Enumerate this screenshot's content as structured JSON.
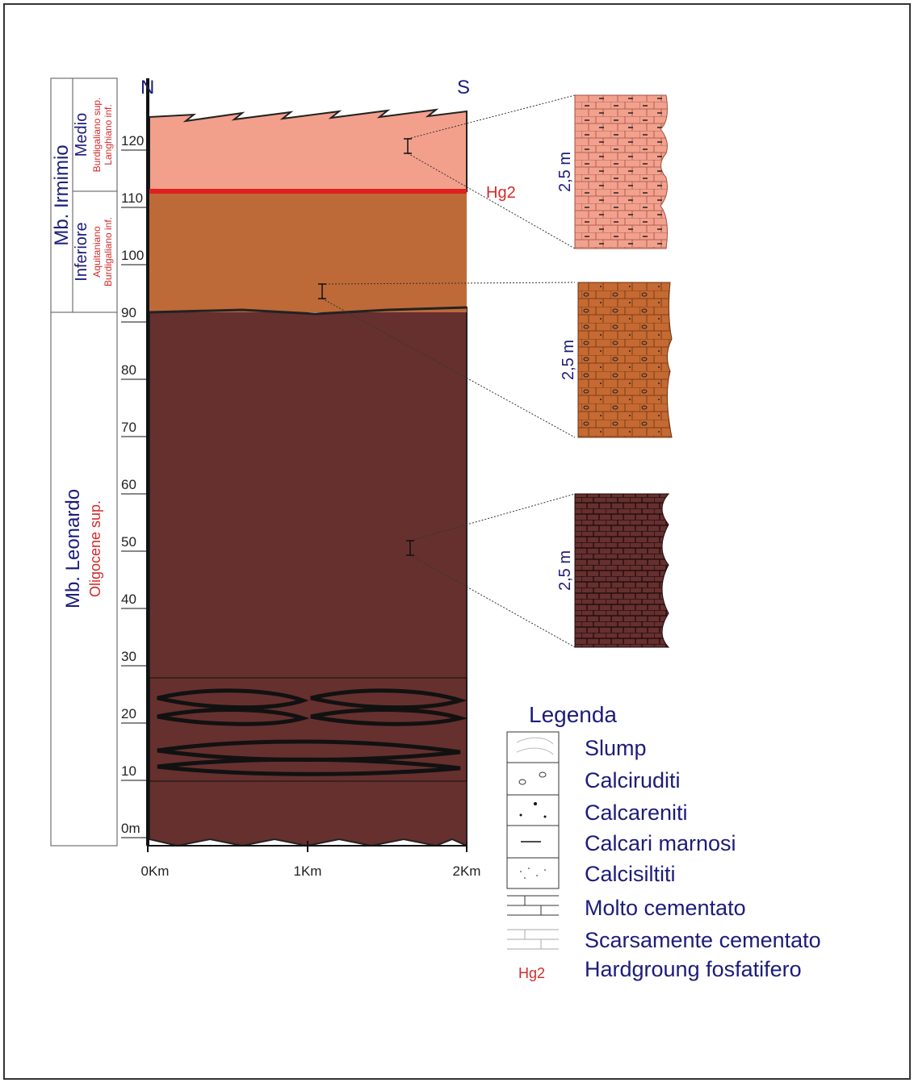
{
  "header": {
    "north": "N",
    "south": "S"
  },
  "column": {
    "upper_member": "Mb. Irmimio",
    "upper_part": "Medio",
    "upper_age_1": "Burdigaliano sup.",
    "upper_age_2": "Langhiano inf.",
    "lower_part": "Inferiore",
    "lower_age_1": "Aquitaniano",
    "lower_age_2": "Burdigaliano inf.",
    "lower_member": "Mb. Leonardo",
    "lower_age": "Oligocene sup."
  },
  "depth_axis": {
    "labels": [
      "0m",
      "10",
      "20",
      "30",
      "40",
      "50",
      "60",
      "70",
      "80",
      "90",
      "100",
      "110",
      "120"
    ]
  },
  "distance_axis": {
    "labels": [
      "0Km",
      "1Km",
      "2Km"
    ]
  },
  "marker": "Hg2",
  "log_columns": [
    {
      "thickness": "2,5 m"
    },
    {
      "thickness": "2,5 m"
    },
    {
      "thickness": "2,5 m"
    }
  ],
  "legend": {
    "title": "Legenda",
    "items": [
      "Slump",
      "Calciruditi",
      "Calcareniti",
      "Calcari marnosi",
      "Calcisiltiti",
      "Molto cementato",
      "Scarsamente cementato",
      "Hardgroung fosfatifero"
    ],
    "hg_symbol": "Hg2"
  }
}
